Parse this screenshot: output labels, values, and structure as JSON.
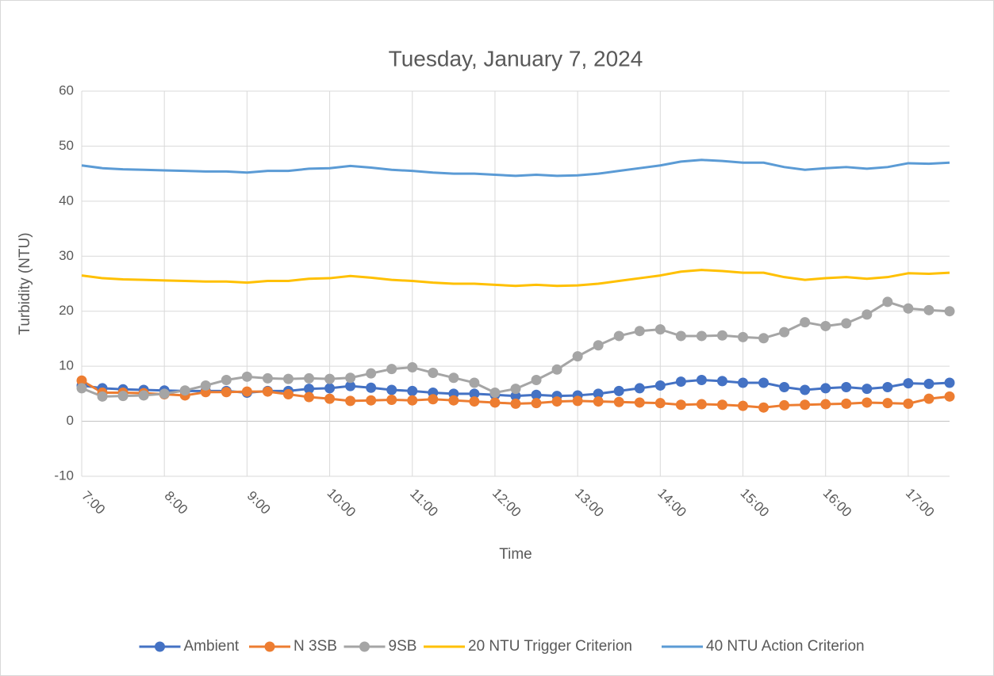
{
  "chart_data": {
    "type": "line",
    "title": "Tuesday, January 7, 2024",
    "x_label": "Time",
    "y_label": "Turbidity (NTU)",
    "categories": [
      "7:00",
      null,
      null,
      null,
      "8:00",
      null,
      null,
      null,
      "9:00",
      null,
      null,
      null,
      "10:00",
      null,
      null,
      null,
      "11:00",
      null,
      null,
      null,
      "12:00",
      null,
      null,
      null,
      "13:00",
      null,
      null,
      null,
      "14:00",
      null,
      null,
      null,
      "15:00",
      null,
      null,
      null,
      "16:00",
      null,
      null,
      null,
      "17:00",
      null,
      null
    ],
    "ylim": [
      -10,
      60
    ],
    "yticks": [
      -10,
      0,
      10,
      20,
      30,
      40,
      50,
      60
    ],
    "grid": true,
    "legend": "bottom",
    "series": [
      {
        "name": "Ambient",
        "color": "#4472c4",
        "marker": true,
        "values": [
          6.5,
          6,
          5.8,
          5.7,
          5.6,
          5.5,
          5.5,
          5.5,
          5.2,
          5.5,
          5.5,
          5.9,
          6,
          6.4,
          6.1,
          5.7,
          5.5,
          5.2,
          5,
          5,
          4.8,
          4.6,
          4.8,
          4.6,
          4.7,
          5,
          5.5,
          6,
          6.5,
          7.2,
          7.5,
          7.3,
          7,
          7,
          6.2,
          5.7,
          6,
          6.2,
          5.9,
          6.2,
          6.9,
          6.8,
          7
        ]
      },
      {
        "name": "N 3SB",
        "color": "#ed7d31",
        "marker": true,
        "values": [
          7.4,
          5.2,
          5.2,
          5.1,
          4.9,
          4.7,
          5.3,
          5.3,
          5.4,
          5.4,
          4.9,
          4.4,
          4.1,
          3.7,
          3.8,
          3.9,
          3.8,
          4,
          3.8,
          3.6,
          3.4,
          3.2,
          3.3,
          3.6,
          3.7,
          3.6,
          3.5,
          3.4,
          3.3,
          3,
          3.1,
          3,
          2.8,
          2.5,
          2.9,
          3,
          3.1,
          3.2,
          3.4,
          3.3,
          3.2,
          4.1,
          4.5
        ]
      },
      {
        "name": "9SB",
        "color": "#a5a5a5",
        "marker": true,
        "values": [
          6,
          4.5,
          4.6,
          4.7,
          5,
          5.6,
          6.5,
          7.5,
          8.1,
          7.8,
          7.7,
          7.8,
          7.7,
          7.9,
          8.7,
          9.5,
          9.8,
          8.8,
          7.9,
          7,
          5.2,
          5.9,
          7.5,
          9.4,
          11.8,
          13.8,
          15.5,
          16.4,
          16.7,
          15.5,
          15.5,
          15.6,
          15.3,
          15.1,
          16.2,
          18,
          17.3,
          17.8,
          19.4,
          21.7,
          20.5,
          20.2,
          20
        ]
      },
      {
        "name": "20 NTU Trigger Criterion",
        "color": "#ffc000",
        "marker": false,
        "values": [
          26.5,
          26,
          25.8,
          25.7,
          25.6,
          25.5,
          25.4,
          25.4,
          25.2,
          25.5,
          25.5,
          25.9,
          26,
          26.4,
          26.1,
          25.7,
          25.5,
          25.2,
          25,
          25,
          24.8,
          24.6,
          24.8,
          24.6,
          24.7,
          25,
          25.5,
          26,
          26.5,
          27.2,
          27.5,
          27.3,
          27,
          27,
          26.2,
          25.7,
          26,
          26.2,
          25.9,
          26.2,
          26.9,
          26.8,
          27
        ]
      },
      {
        "name": "40 NTU Action Criterion",
        "color": "#5b9bd5",
        "marker": false,
        "values": [
          46.5,
          46,
          45.8,
          45.7,
          45.6,
          45.5,
          45.4,
          45.4,
          45.2,
          45.5,
          45.5,
          45.9,
          46,
          46.4,
          46.1,
          45.7,
          45.5,
          45.2,
          45,
          45,
          44.8,
          44.6,
          44.8,
          44.6,
          44.7,
          45,
          45.5,
          46,
          46.5,
          47.2,
          47.5,
          47.3,
          47,
          47,
          46.2,
          45.7,
          46,
          46.2,
          45.9,
          46.2,
          46.9,
          46.8,
          47
        ]
      }
    ]
  }
}
